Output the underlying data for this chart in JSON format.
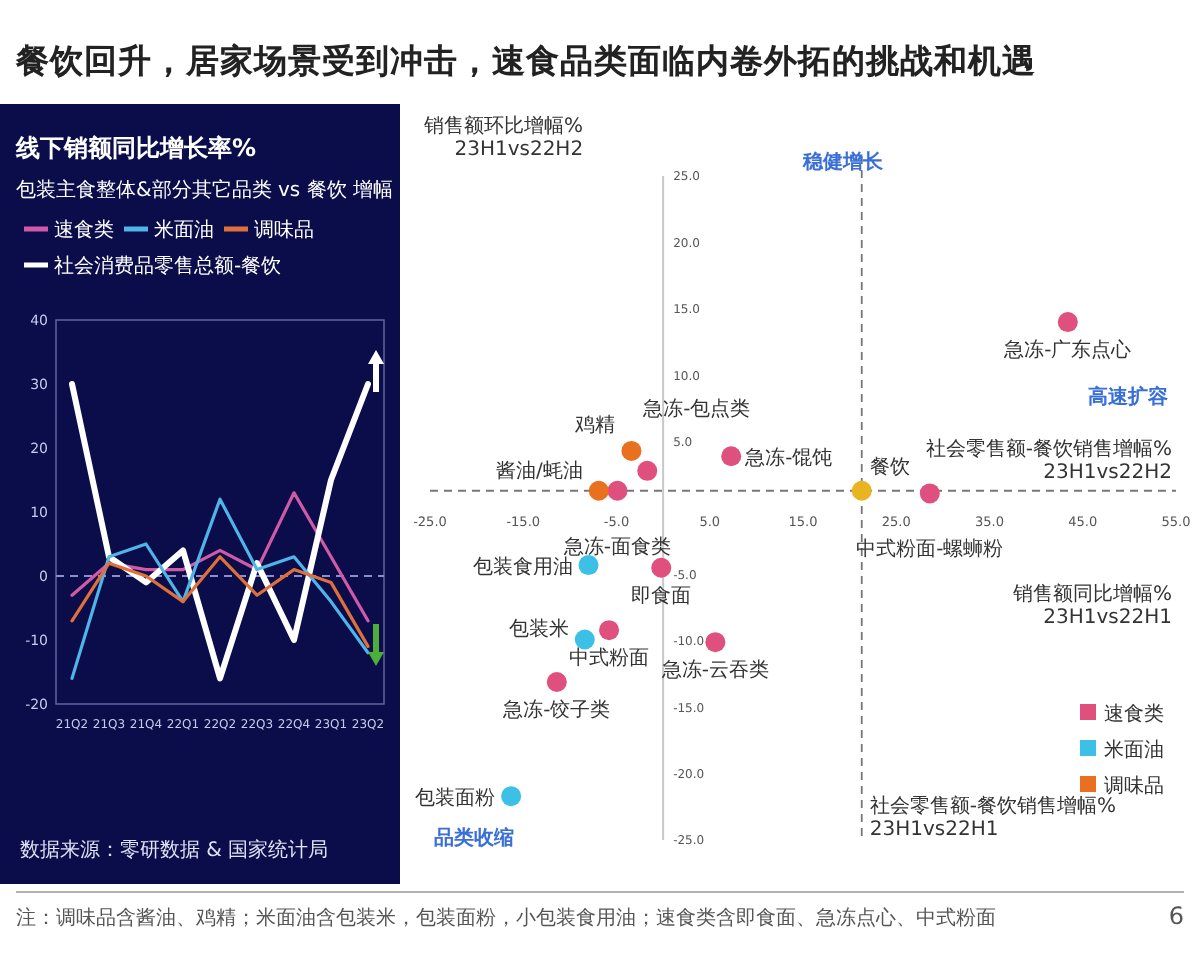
{
  "chart_data": [
    {
      "type": "line",
      "title": "线下销额同比增长率%",
      "subtitle": "包装主食整体&部分其它品类 vs 餐饮 增幅",
      "categories": [
        "21Q2",
        "21Q3",
        "21Q4",
        "22Q1",
        "22Q2",
        "22Q3",
        "22Q4",
        "23Q1",
        "23Q2"
      ],
      "series": [
        {
          "name": "速食类",
          "color": "#d05aa8",
          "values": [
            -3,
            2,
            1,
            1,
            4,
            1,
            13,
            3,
            -7
          ]
        },
        {
          "name": "社会消费品零售总额-餐饮",
          "color": "#ffffff",
          "values": [
            30,
            3,
            -1,
            4,
            -16,
            2,
            -10,
            15,
            30
          ]
        },
        {
          "name": "米面油",
          "color": "#4fb4e8",
          "values": [
            -16,
            3,
            5,
            -4,
            12,
            1,
            3,
            -4,
            -12
          ]
        },
        {
          "name": "调味品",
          "color": "#e0703a",
          "values": [
            -7,
            2,
            0,
            -4,
            3,
            -3,
            1,
            -1,
            -11
          ]
        }
      ],
      "ylim": [
        -20,
        40
      ],
      "yticks": [
        -20,
        -10,
        0,
        10,
        20,
        30,
        40
      ],
      "legend": "top",
      "ref_lines": [
        {
          "axis": "y",
          "value": 0,
          "color": "#8a8fd0",
          "line_style": "dashed"
        }
      ],
      "annotations": [
        "餐饮回升，居家场景受到冲击，速食品类面临内卷外拓的挑战和机遇",
        "数据来源：零研数据 & 国家统计局"
      ]
    },
    {
      "type": "scatter",
      "xlabel": "销售额同比增幅%\n23H1vs22H1",
      "ylabel": "销售额环比增幅%\n23H1vs22H2",
      "marker": "circle",
      "legend": "bottom right",
      "xlim": [
        -25,
        55
      ],
      "xticks": [
        {
          "value": -25,
          "label": "-25.0"
        },
        {
          "value": -15,
          "label": "-15.0"
        },
        {
          "value": -5,
          "label": "-5.0"
        },
        {
          "value": 5,
          "label": "5.0"
        },
        {
          "value": 15,
          "label": "15.0"
        },
        {
          "value": 25,
          "label": "25.0"
        },
        {
          "value": 35,
          "label": "35.0"
        },
        {
          "value": 45,
          "label": "45.0"
        },
        {
          "value": 55,
          "label": "55.0"
        }
      ],
      "ylim": [
        -25,
        25
      ],
      "yticks": [
        {
          "value": -25,
          "label": "-25.0"
        },
        {
          "value": -20,
          "label": "-20.0"
        },
        {
          "value": -15,
          "label": "-15.0"
        },
        {
          "value": -10,
          "label": "-10.0"
        },
        {
          "value": -5,
          "label": "-5.0"
        },
        {
          "value": 5,
          "label": "5.0"
        },
        {
          "value": 10,
          "label": "10.0"
        },
        {
          "value": 15,
          "label": "15.0"
        },
        {
          "value": 20,
          "label": "20.0"
        },
        {
          "value": 25,
          "label": "25.0"
        }
      ],
      "series": [
        {
          "name": "速食类",
          "color": "#e0507f",
          "x": [
            43.4,
            28.6,
            7.3,
            -1.7,
            -4.9,
            -0.2,
            -5.8,
            5.6,
            -11.4
          ],
          "values": [
            14.0,
            1.1,
            3.9,
            2.8,
            1.3,
            -4.5,
            -9.2,
            -10.1,
            -13.1
          ]
        },
        {
          "name": "米面油",
          "color": "#3dc0e6",
          "x": [
            -8.0,
            -8.4,
            -16.3
          ],
          "values": [
            -4.3,
            -9.9,
            -21.7
          ]
        },
        {
          "name": "调味品",
          "color": "#e8701e",
          "x": [
            -3.4,
            -6.9
          ],
          "values": [
            4.3,
            1.3
          ]
        },
        {
          "color": "#e8b422",
          "x": [
            21.3
          ],
          "values": [
            1.3
          ]
        }
      ],
      "ref_lines": [
        {
          "axis": "y",
          "value": 1.3,
          "label": "社会零售额-餐饮销售增幅%\n23H1vs22H2",
          "color": "#777777",
          "line_style": "dashed"
        },
        {
          "axis": "x",
          "value": 21.3,
          "label": "社会零售额-餐饮销售增幅%\n23H1vs22H1",
          "color": "#777777",
          "line_style": "dashed"
        }
      ],
      "annotations": [
        {
          "text": "急冻-广东点心",
          "x": 43.4,
          "y": 14.0
        },
        {
          "text": "中式粉面-螺蛳粉",
          "x": 28.6,
          "y": 1.1
        },
        {
          "text": "餐饮",
          "x": 21.3,
          "y": 1.3
        },
        {
          "text": "急冻-馄饨",
          "x": 7.3,
          "y": 3.9
        },
        {
          "text": "急冻-包点类",
          "x": -1.7,
          "y": 2.8
        },
        {
          "text": "鸡精",
          "x": -3.4,
          "y": 4.3
        },
        {
          "text": "酱油/蚝油",
          "x": -6.9,
          "y": 1.3
        },
        {
          "text": "急冻-面食类",
          "x": -4.9,
          "y": 1.3
        },
        {
          "text": "包装食用油",
          "x": -8.0,
          "y": -4.3
        },
        {
          "text": "即食面",
          "x": -0.2,
          "y": -4.5
        },
        {
          "text": "中式粉面",
          "x": -5.8,
          "y": -9.2
        },
        {
          "text": "包装米",
          "x": -8.4,
          "y": -9.9
        },
        {
          "text": "急冻-云吞类",
          "x": 5.6,
          "y": -10.1
        },
        {
          "text": "急冻-饺子类",
          "x": -11.4,
          "y": -13.1
        },
        {
          "text": "包装面粉",
          "x": -16.3,
          "y": -21.7
        },
        "稳健增长",
        "高速扩容",
        "品类收缩",
        "注：调味品含酱油、鸡精；米面油含包装米，包装面粉，小包装食用油；速食类含即食面、急冻点心、中式粉面",
        "6"
      ]
    }
  ]
}
